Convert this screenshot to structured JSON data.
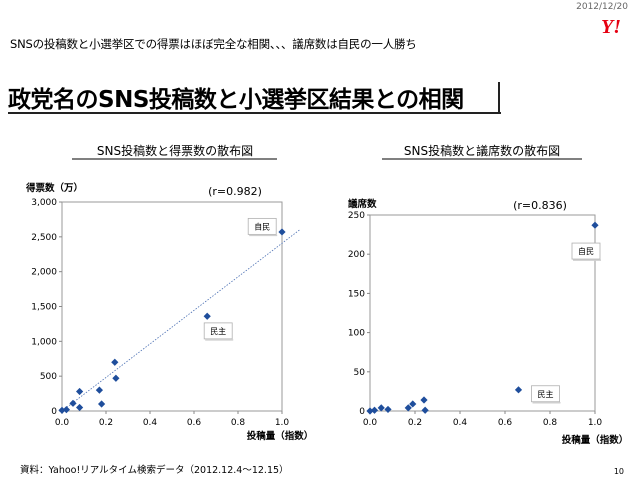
{
  "header": {
    "date": "2012/12/20",
    "logo_text": "Y!",
    "subtitle": "SNSの投稿数と小選挙区での得票はほぼ完全な相関、、、議席数は自民の一人勝ち",
    "title": "政党名のSNS投稿数と小選挙区結果との相関"
  },
  "footer": {
    "source": "資料：Yahoo!リアルタイム検索データ（2012.12.4～12.15）",
    "page_number": "10"
  },
  "colors": {
    "marker": "#1f4e9c",
    "trendline": "#4a6fb3"
  },
  "chart_data": [
    {
      "type": "scatter",
      "title": "SNS投稿数と得票数の散布図",
      "xlabel": "投稿量（指数）",
      "ylabel": "得票数（万）",
      "annotation": "(r=0.982)",
      "xlim": [
        0,
        1.0
      ],
      "ylim": [
        0,
        3000
      ],
      "xticks": [
        0.0,
        0.2,
        0.4,
        0.6,
        0.8,
        1.0
      ],
      "xtick_labels": [
        "0.0",
        "0.2",
        "0.4",
        "0.6",
        "0.8",
        "1.0"
      ],
      "yticks": [
        0,
        500,
        1000,
        1500,
        2000,
        2500,
        3000
      ],
      "ytick_labels": [
        "0",
        "500",
        "1,000",
        "1,500",
        "2,000",
        "2,500",
        "3,000"
      ],
      "trendline": [
        [
          0.0,
          0
        ],
        [
          1.08,
          2600
        ]
      ],
      "points": [
        {
          "x": 0.0,
          "y": 10
        },
        {
          "x": 0.02,
          "y": 20
        },
        {
          "x": 0.05,
          "y": 110
        },
        {
          "x": 0.08,
          "y": 50
        },
        {
          "x": 0.08,
          "y": 280
        },
        {
          "x": 0.17,
          "y": 300
        },
        {
          "x": 0.18,
          "y": 100
        },
        {
          "x": 0.24,
          "y": 700
        },
        {
          "x": 0.245,
          "y": 470
        },
        {
          "x": 0.66,
          "y": 1360
        },
        {
          "x": 1.0,
          "y": 2570
        }
      ],
      "labels": [
        {
          "text": "自民",
          "x": 0.91,
          "y": 2650
        },
        {
          "text": "民主",
          "x": 0.71,
          "y": 1150
        }
      ]
    },
    {
      "type": "scatter",
      "title": "SNS投稿数と議席数の散布図",
      "xlabel": "投稿量（指数）",
      "ylabel": "議席数",
      "annotation": "(r=0.836)",
      "xlim": [
        0,
        1.0
      ],
      "ylim": [
        0,
        250
      ],
      "xticks": [
        0.0,
        0.2,
        0.4,
        0.6,
        0.8,
        1.0
      ],
      "xtick_labels": [
        "0.0",
        "0.2",
        "0.4",
        "0.6",
        "0.8",
        "1.0"
      ],
      "yticks": [
        0,
        50,
        100,
        150,
        200,
        250
      ],
      "ytick_labels": [
        "0",
        "50",
        "100",
        "150",
        "200",
        "250"
      ],
      "points": [
        {
          "x": 0.0,
          "y": 0
        },
        {
          "x": 0.02,
          "y": 1
        },
        {
          "x": 0.05,
          "y": 4
        },
        {
          "x": 0.08,
          "y": 2
        },
        {
          "x": 0.17,
          "y": 4
        },
        {
          "x": 0.19,
          "y": 9
        },
        {
          "x": 0.24,
          "y": 14
        },
        {
          "x": 0.245,
          "y": 1
        },
        {
          "x": 0.66,
          "y": 27
        },
        {
          "x": 1.0,
          "y": 237
        }
      ],
      "labels": [
        {
          "text": "自民",
          "x": 0.96,
          "y": 204
        },
        {
          "text": "民主",
          "x": 0.78,
          "y": 22
        }
      ]
    }
  ]
}
